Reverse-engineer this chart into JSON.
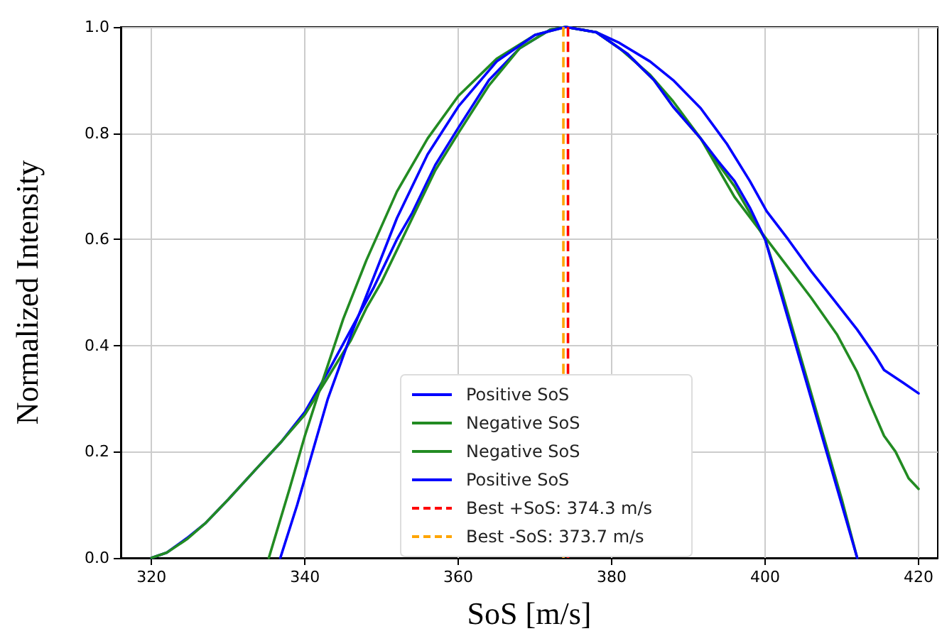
{
  "chart_data": {
    "type": "line",
    "xlabel": "SoS [m/s]",
    "ylabel": "Normalized Intensity",
    "xlim": [
      316,
      422.5
    ],
    "ylim": [
      0,
      1
    ],
    "xticks": [
      320,
      340,
      360,
      380,
      400,
      420
    ],
    "yticks": [
      {
        "value": 0,
        "label": "0.0"
      },
      {
        "value": 0.2,
        "label": "0.2"
      },
      {
        "value": 0.4,
        "label": "0.4"
      },
      {
        "value": 0.6,
        "label": "0.6"
      },
      {
        "value": 0.8,
        "label": "0.8"
      },
      {
        "value": 1,
        "label": "1.0"
      }
    ],
    "grid": true,
    "legend": "bottom",
    "line_style": "solid",
    "series": [
      {
        "name": "Positive SoS",
        "color": "#0000ff",
        "x": [
          320,
          322,
          324.6,
          327,
          330,
          333.8,
          337,
          340,
          343,
          346,
          349,
          352,
          354,
          357,
          360,
          364,
          368,
          372,
          374,
          378,
          381,
          385,
          388,
          391.6,
          395,
          398,
          400.2,
          403,
          406,
          408.9,
          412,
          414.4,
          415.5,
          418,
          420
        ],
        "values": [
          0,
          0.01,
          0.037,
          0.065,
          0.11,
          0.17,
          0.22,
          0.275,
          0.35,
          0.43,
          0.51,
          0.6,
          0.65,
          0.74,
          0.81,
          0.9,
          0.96,
          0.995,
          1,
          0.99,
          0.97,
          0.935,
          0.9,
          0.847,
          0.78,
          0.71,
          0.653,
          0.6,
          0.54,
          0.487,
          0.43,
          0.38,
          0.354,
          0.33,
          0.31
        ]
      },
      {
        "name": "Negative SoS",
        "color": "#228b22",
        "x": [
          320,
          322,
          324.6,
          327,
          330,
          333.8,
          337,
          340,
          343,
          346,
          348,
          350,
          352,
          354,
          357,
          360,
          364,
          368,
          372,
          374,
          378,
          381,
          385,
          388,
          391.6,
          396,
          400.2,
          403.9,
          406,
          409.4,
          412,
          413.7,
          415.5,
          417,
          418.7,
          420
        ],
        "values": [
          0,
          0.01,
          0.035,
          0.065,
          0.11,
          0.17,
          0.22,
          0.27,
          0.34,
          0.41,
          0.47,
          0.52,
          0.58,
          0.64,
          0.73,
          0.8,
          0.89,
          0.96,
          0.995,
          1,
          0.99,
          0.96,
          0.91,
          0.86,
          0.79,
          0.68,
          0.6,
          0.53,
          0.49,
          0.42,
          0.35,
          0.29,
          0.23,
          0.2,
          0.15,
          0.13
        ]
      },
      {
        "name": "Negative SoS",
        "color": "#228b22",
        "x": [
          335.3,
          338,
          340,
          342,
          345,
          348,
          352,
          356,
          360,
          365,
          370,
          374,
          378,
          382,
          385.5,
          388,
          391.6,
          394,
          396,
          398,
          400,
          402,
          404,
          406,
          408,
          410,
          412
        ],
        "values": [
          0,
          0.13,
          0.23,
          0.32,
          0.45,
          0.56,
          0.69,
          0.79,
          0.87,
          0.94,
          0.985,
          1,
          0.99,
          0.95,
          0.9,
          0.85,
          0.79,
          0.74,
          0.7,
          0.65,
          0.6,
          0.51,
          0.41,
          0.31,
          0.21,
          0.11,
          0
        ]
      },
      {
        "name": "Positive SoS",
        "color": "#0000ff",
        "x": [
          336.8,
          339,
          341,
          343,
          346,
          349,
          352,
          356,
          360,
          365,
          370,
          374,
          378,
          382,
          385.5,
          388,
          391.6,
          394,
          396,
          398,
          400,
          402,
          404,
          406,
          408,
          410,
          412
        ],
        "values": [
          0,
          0.1,
          0.2,
          0.3,
          0.42,
          0.53,
          0.64,
          0.76,
          0.85,
          0.935,
          0.985,
          1,
          0.99,
          0.95,
          0.9,
          0.85,
          0.79,
          0.745,
          0.71,
          0.66,
          0.6,
          0.5,
          0.4,
          0.3,
          0.2,
          0.1,
          0
        ]
      }
    ],
    "ref_lines": [
      {
        "axis": "x",
        "value": 374.3,
        "label": "Best +SoS: 374.3 m/s",
        "color": "#ff0000",
        "line_style": "dashed"
      },
      {
        "axis": "x",
        "value": 373.7,
        "label": "Best -SoS: 373.7 m/s",
        "color": "#ffa500",
        "line_style": "dashed"
      }
    ]
  }
}
